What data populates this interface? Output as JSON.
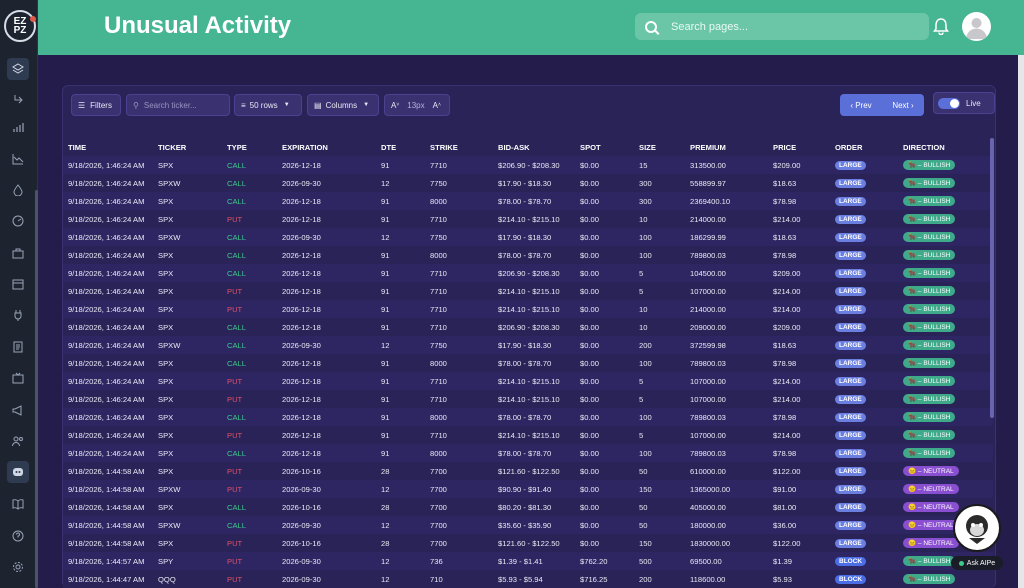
{
  "header": {
    "title": "Unusual Activity",
    "search_placeholder": "Search pages..."
  },
  "logo": {
    "line1": "EZ",
    "line2": "PZ"
  },
  "toolbar": {
    "filters_label": "Filters",
    "search_placeholder": "Search ticker...",
    "rows_label": "50 rows",
    "columns_label": "Columns",
    "font_decrease": "A",
    "font_size": "13px",
    "font_increase": "A",
    "prev_label": "Prev",
    "next_label": "Next",
    "live_label": "Live"
  },
  "table": {
    "headers": [
      "TIME",
      "TICKER",
      "TYPE",
      "EXPIRATION",
      "DTE",
      "STRIKE",
      "BID-ASK",
      "SPOT",
      "SIZE",
      "PREMIUM",
      "PRICE",
      "ORDER",
      "DIRECTION"
    ],
    "rows": [
      [
        "9/18/2026, 1:46:24 AM",
        "SPX",
        "CALL",
        "2026-12-18",
        "91",
        "7710",
        "$206.90 - $208.30",
        "$0.00",
        "15",
        "313500.00",
        "$209.00",
        "LARGE",
        "BULLISH"
      ],
      [
        "9/18/2026, 1:46:24 AM",
        "SPXW",
        "CALL",
        "2026-09-30",
        "12",
        "7750",
        "$17.90 - $18.30",
        "$0.00",
        "300",
        "558899.97",
        "$18.63",
        "LARGE",
        "BULLISH"
      ],
      [
        "9/18/2026, 1:46:24 AM",
        "SPX",
        "CALL",
        "2026-12-18",
        "91",
        "8000",
        "$78.00 - $78.70",
        "$0.00",
        "300",
        "2369400.10",
        "$78.98",
        "LARGE",
        "BULLISH"
      ],
      [
        "9/18/2026, 1:46:24 AM",
        "SPX",
        "PUT",
        "2026-12-18",
        "91",
        "7710",
        "$214.10 - $215.10",
        "$0.00",
        "10",
        "214000.00",
        "$214.00",
        "LARGE",
        "BULLISH"
      ],
      [
        "9/18/2026, 1:46:24 AM",
        "SPXW",
        "CALL",
        "2026-09-30",
        "12",
        "7750",
        "$17.90 - $18.30",
        "$0.00",
        "100",
        "186299.99",
        "$18.63",
        "LARGE",
        "BULLISH"
      ],
      [
        "9/18/2026, 1:46:24 AM",
        "SPX",
        "CALL",
        "2026-12-18",
        "91",
        "8000",
        "$78.00 - $78.70",
        "$0.00",
        "100",
        "789800.03",
        "$78.98",
        "LARGE",
        "BULLISH"
      ],
      [
        "9/18/2026, 1:46:24 AM",
        "SPX",
        "CALL",
        "2026-12-18",
        "91",
        "7710",
        "$206.90 - $208.30",
        "$0.00",
        "5",
        "104500.00",
        "$209.00",
        "LARGE",
        "BULLISH"
      ],
      [
        "9/18/2026, 1:46:24 AM",
        "SPX",
        "PUT",
        "2026-12-18",
        "91",
        "7710",
        "$214.10 - $215.10",
        "$0.00",
        "5",
        "107000.00",
        "$214.00",
        "LARGE",
        "BULLISH"
      ],
      [
        "9/18/2026, 1:46:24 AM",
        "SPX",
        "PUT",
        "2026-12-18",
        "91",
        "7710",
        "$214.10 - $215.10",
        "$0.00",
        "10",
        "214000.00",
        "$214.00",
        "LARGE",
        "BULLISH"
      ],
      [
        "9/18/2026, 1:46:24 AM",
        "SPX",
        "CALL",
        "2026-12-18",
        "91",
        "7710",
        "$206.90 - $208.30",
        "$0.00",
        "10",
        "209000.00",
        "$209.00",
        "LARGE",
        "BULLISH"
      ],
      [
        "9/18/2026, 1:46:24 AM",
        "SPXW",
        "CALL",
        "2026-09-30",
        "12",
        "7750",
        "$17.90 - $18.30",
        "$0.00",
        "200",
        "372599.98",
        "$18.63",
        "LARGE",
        "BULLISH"
      ],
      [
        "9/18/2026, 1:46:24 AM",
        "SPX",
        "CALL",
        "2026-12-18",
        "91",
        "8000",
        "$78.00 - $78.70",
        "$0.00",
        "100",
        "789800.03",
        "$78.98",
        "LARGE",
        "BULLISH"
      ],
      [
        "9/18/2026, 1:46:24 AM",
        "SPX",
        "PUT",
        "2026-12-18",
        "91",
        "7710",
        "$214.10 - $215.10",
        "$0.00",
        "5",
        "107000.00",
        "$214.00",
        "LARGE",
        "BULLISH"
      ],
      [
        "9/18/2026, 1:46:24 AM",
        "SPX",
        "PUT",
        "2026-12-18",
        "91",
        "7710",
        "$214.10 - $215.10",
        "$0.00",
        "5",
        "107000.00",
        "$214.00",
        "LARGE",
        "BULLISH"
      ],
      [
        "9/18/2026, 1:46:24 AM",
        "SPX",
        "CALL",
        "2026-12-18",
        "91",
        "8000",
        "$78.00 - $78.70",
        "$0.00",
        "100",
        "789800.03",
        "$78.98",
        "LARGE",
        "BULLISH"
      ],
      [
        "9/18/2026, 1:46:24 AM",
        "SPX",
        "PUT",
        "2026-12-18",
        "91",
        "7710",
        "$214.10 - $215.10",
        "$0.00",
        "5",
        "107000.00",
        "$214.00",
        "LARGE",
        "BULLISH"
      ],
      [
        "9/18/2026, 1:46:24 AM",
        "SPX",
        "CALL",
        "2026-12-18",
        "91",
        "8000",
        "$78.00 - $78.70",
        "$0.00",
        "100",
        "789800.03",
        "$78.98",
        "LARGE",
        "BULLISH"
      ],
      [
        "9/18/2026, 1:44:58 AM",
        "SPX",
        "PUT",
        "2026-10-16",
        "28",
        "7700",
        "$121.60 - $122.50",
        "$0.00",
        "50",
        "610000.00",
        "$122.00",
        "LARGE",
        "NEUTRAL"
      ],
      [
        "9/18/2026, 1:44:58 AM",
        "SPXW",
        "PUT",
        "2026-09-30",
        "12",
        "7700",
        "$90.90 - $91.40",
        "$0.00",
        "150",
        "1365000.00",
        "$91.00",
        "LARGE",
        "NEUTRAL"
      ],
      [
        "9/18/2026, 1:44:58 AM",
        "SPX",
        "CALL",
        "2026-10-16",
        "28",
        "7700",
        "$80.20 - $81.30",
        "$0.00",
        "50",
        "405000.00",
        "$81.00",
        "LARGE",
        "NEUTRAL"
      ],
      [
        "9/18/2026, 1:44:58 AM",
        "SPXW",
        "CALL",
        "2026-09-30",
        "12",
        "7700",
        "$35.60 - $35.90",
        "$0.00",
        "50",
        "180000.00",
        "$36.00",
        "LARGE",
        "NEUTRAL"
      ],
      [
        "9/18/2026, 1:44:58 AM",
        "SPX",
        "PUT",
        "2026-10-16",
        "28",
        "7700",
        "$121.60 - $122.50",
        "$0.00",
        "150",
        "1830000.00",
        "$122.00",
        "LARGE",
        "NEUTRAL"
      ],
      [
        "9/18/2026, 1:44:57 AM",
        "SPY",
        "PUT",
        "2026-09-30",
        "12",
        "736",
        "$1.39 - $1.41",
        "$762.20",
        "500",
        "69500.00",
        "$1.39",
        "BLOCK",
        "BULLISH"
      ],
      [
        "9/18/2026, 1:44:47 AM",
        "QQQ",
        "PUT",
        "2026-09-30",
        "12",
        "710",
        "$5.93 - $5.94",
        "$716.25",
        "200",
        "118600.00",
        "$5.93",
        "BLOCK",
        "BULLISH"
      ]
    ]
  },
  "ask_ai": {
    "label": "Ask AIPe"
  },
  "colors": {
    "header_bg": "#45b592",
    "call": "#3ec98b",
    "put": "#e0506a",
    "order_pill": "#6a7fe0",
    "bullish": "#3eaa8a",
    "neutral": "#8a4fd0"
  }
}
